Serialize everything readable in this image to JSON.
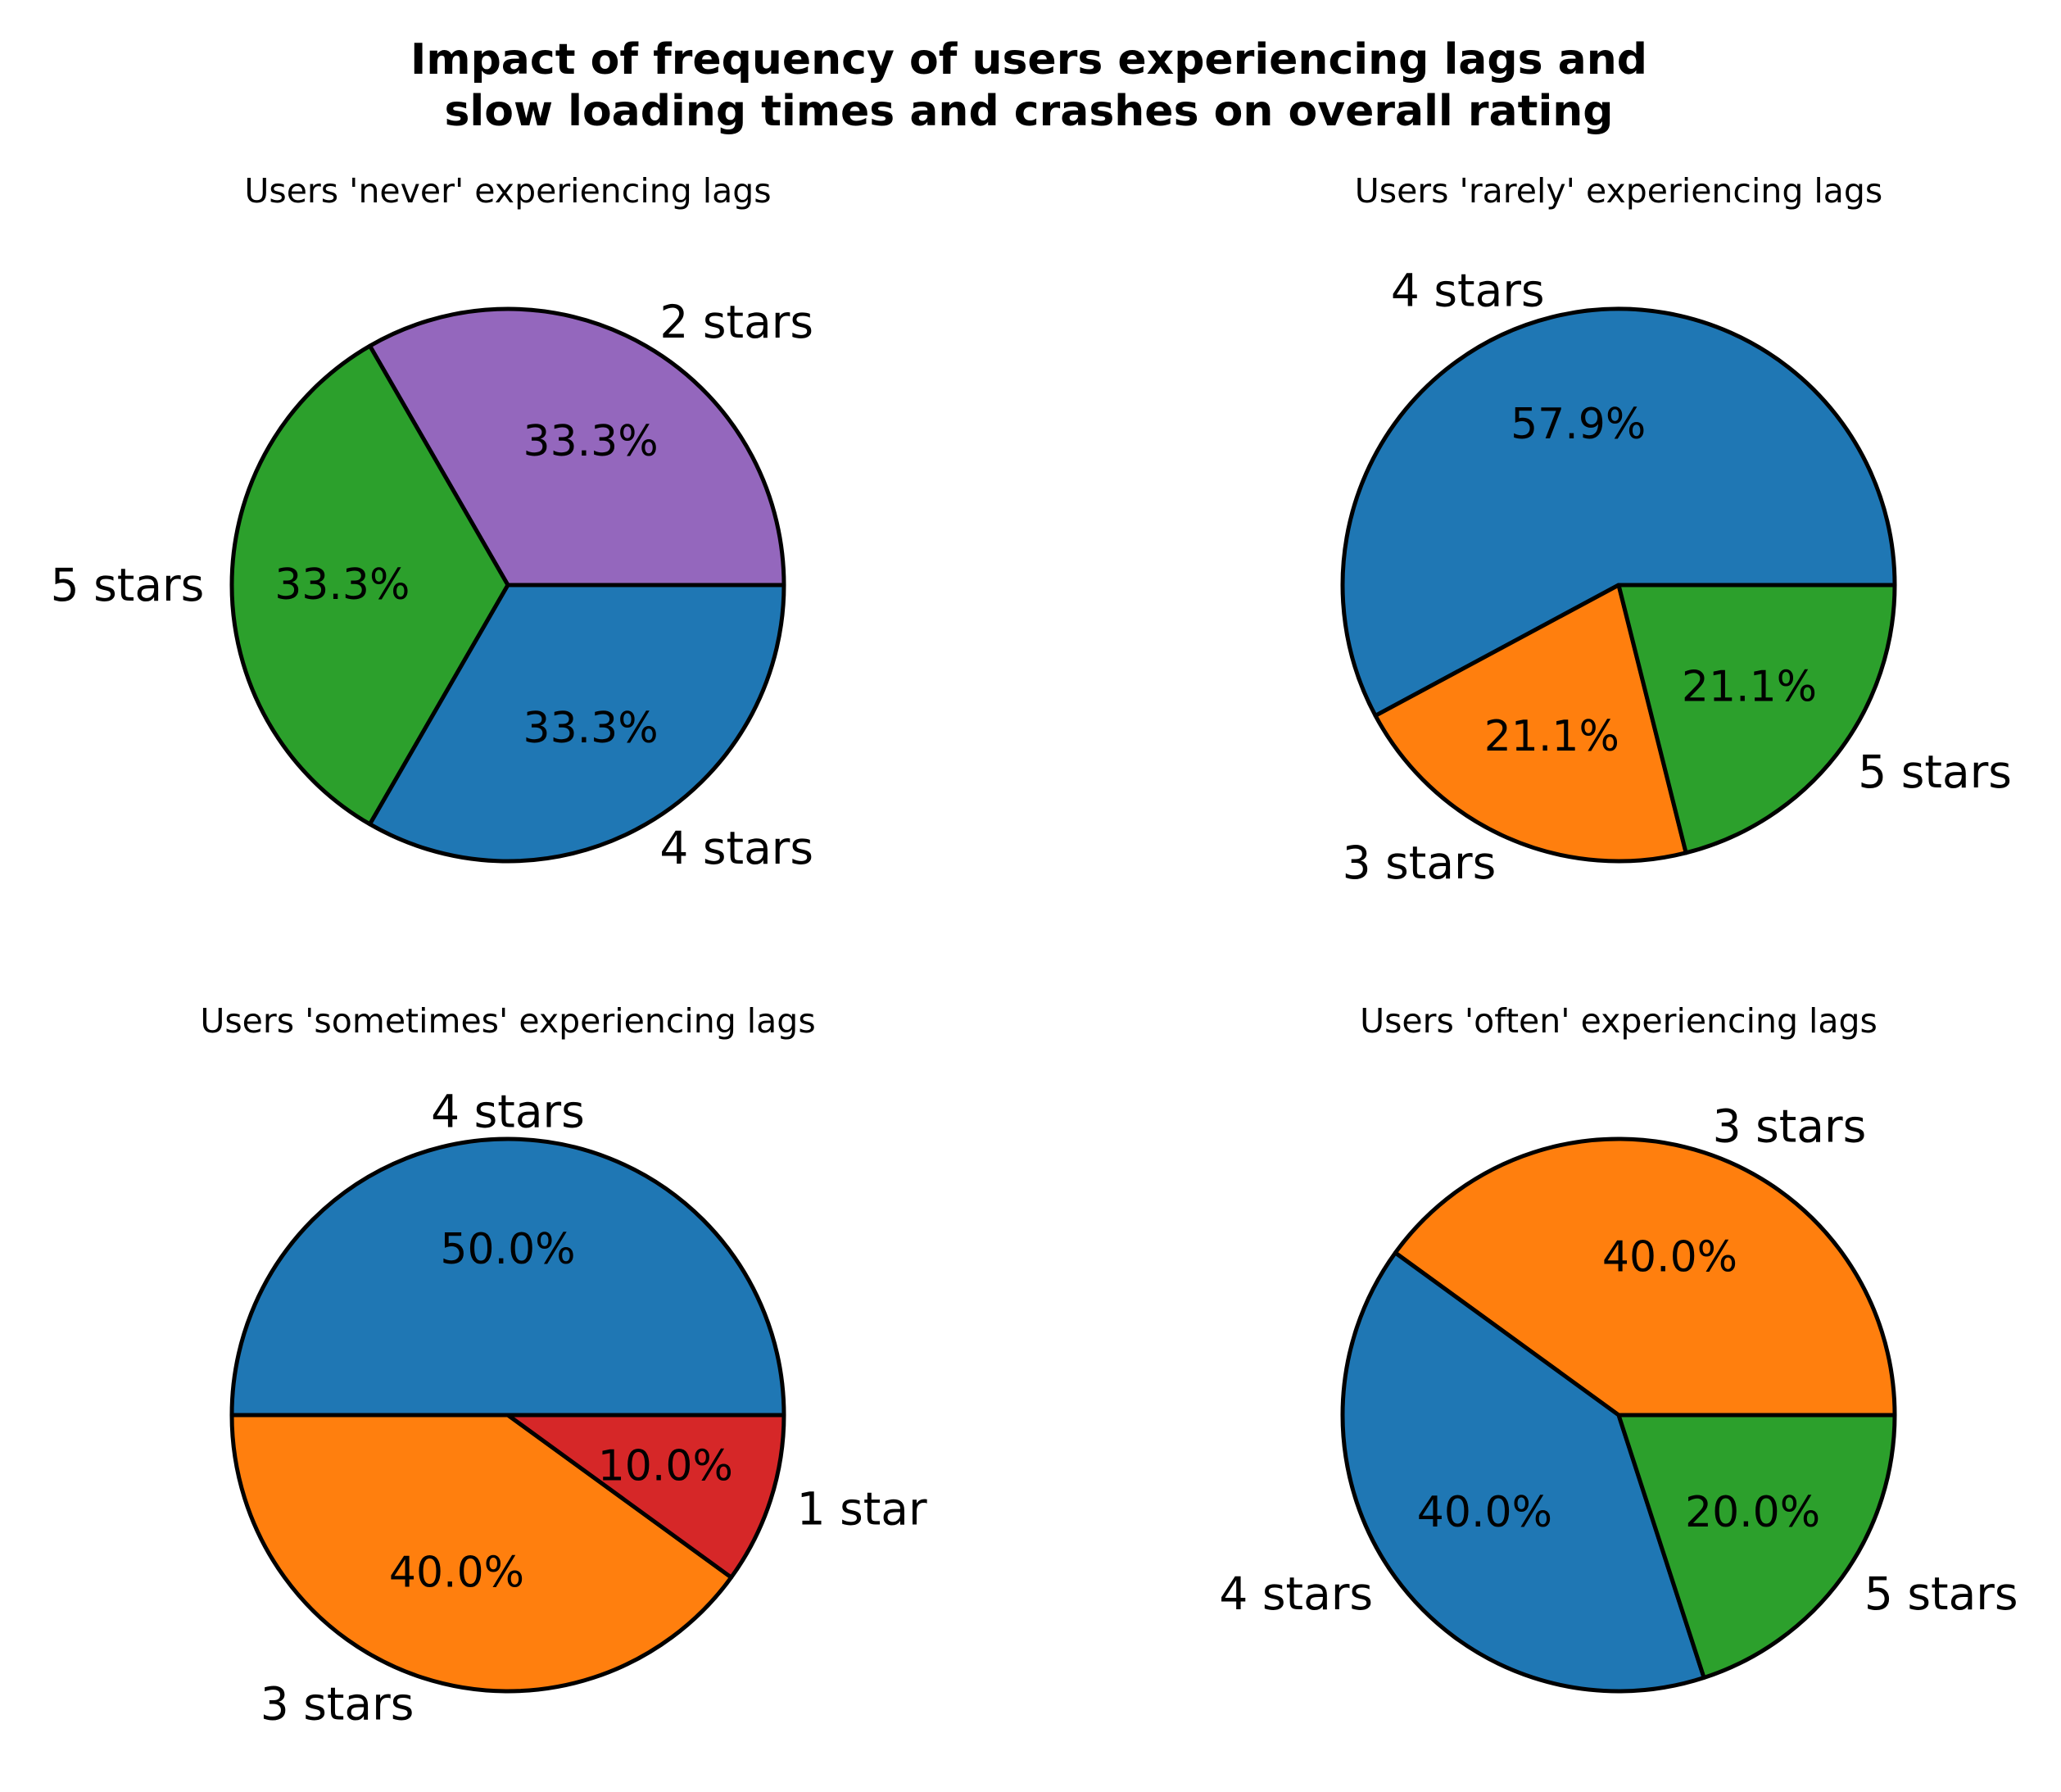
{
  "title_line1": "Impact of frequency of users experiencing lags and",
  "title_line2": "slow loading times and crashes on overall rating",
  "colors": {
    "1 star": "#d62728",
    "2 stars": "#9467bd",
    "3 stars": "#ff7f0e",
    "4 stars": "#1f77b4",
    "5 stars": "#2ca02c",
    "edge": "#000000"
  },
  "chart_data": [
    {
      "type": "pie",
      "title": "Users 'never' experiencing lags",
      "labels": [
        "2 stars",
        "5 stars",
        "4 stars"
      ],
      "values": [
        33.3,
        33.3,
        33.3
      ],
      "percent_labels": [
        "33.3%",
        "33.3%",
        "33.3%"
      ],
      "start_angle_deg": 0,
      "direction": "counterclockwise"
    },
    {
      "type": "pie",
      "title": "Users 'rarely' experiencing lags",
      "labels": [
        "4 stars",
        "3 stars",
        "5 stars"
      ],
      "values": [
        57.9,
        21.1,
        21.1
      ],
      "percent_labels": [
        "57.9%",
        "21.1%",
        "21.1%"
      ],
      "start_angle_deg": 0,
      "direction": "counterclockwise"
    },
    {
      "type": "pie",
      "title": "Users 'sometimes' experiencing lags",
      "labels": [
        "4 stars",
        "3 stars",
        "1 star"
      ],
      "values": [
        50.0,
        40.0,
        10.0
      ],
      "percent_labels": [
        "50.0%",
        "40.0%",
        "10.0%"
      ],
      "start_angle_deg": 0,
      "direction": "counterclockwise"
    },
    {
      "type": "pie",
      "title": "Users 'often' experiencing lags",
      "labels": [
        "3 stars",
        "4 stars",
        "5 stars"
      ],
      "values": [
        40.0,
        40.0,
        20.0
      ],
      "percent_labels": [
        "40.0%",
        "40.0%",
        "20.0%"
      ],
      "start_angle_deg": 0,
      "direction": "counterclockwise"
    }
  ]
}
